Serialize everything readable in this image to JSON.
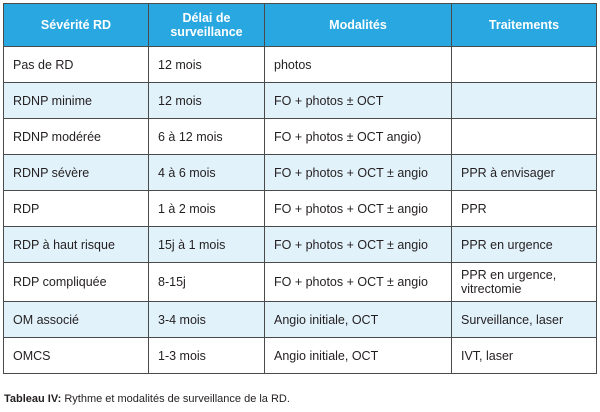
{
  "table": {
    "headers": [
      "Sévérité RD",
      "Délai de surveillance",
      "Modalités",
      "Traitements"
    ],
    "rows": [
      [
        "Pas de RD",
        "12 mois",
        "photos",
        ""
      ],
      [
        "RDNP minime",
        "12 mois",
        "FO + photos ± OCT",
        ""
      ],
      [
        "RDNP modérée",
        "6 à 12 mois",
        "FO + photos ± OCT angio)",
        ""
      ],
      [
        "RDNP sévère",
        "4 à 6 mois",
        "FO + photos + OCT ± angio",
        "PPR à envisager"
      ],
      [
        "RDP",
        "1 à 2 mois",
        "FO + photos + OCT ± angio",
        "PPR"
      ],
      [
        "RDP à haut risque",
        "15j à 1 mois",
        "FO + photos + OCT ± angio",
        "PPR en urgence"
      ],
      [
        "RDP compliquée",
        "8-15j",
        "FO + photos + OCT ± angio",
        "PPR en urgence, vitrectomie"
      ],
      [
        "OM associé",
        "3-4 mois",
        "Angio initiale, OCT",
        "Surveillance, laser"
      ],
      [
        "OMCS",
        "1-3 mois",
        "Angio initiale, OCT",
        "IVT, laser"
      ]
    ]
  },
  "caption": {
    "label": "Tableau IV:",
    "text": " Rythme et modalités de surveillance de la RD."
  },
  "colors": {
    "header_bg": "#29a7e1",
    "header_text": "#ffffff",
    "row_alt_bg": "#e2f2fb",
    "border": "#4a4a4a"
  }
}
